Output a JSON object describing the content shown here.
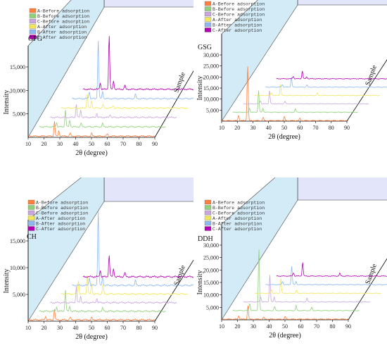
{
  "colors": {
    "wall_left": "#cfe9f6",
    "wall_back": "#e3e6fa",
    "axis": "#000000",
    "series_A_before": "#ff7f3f",
    "series_B_before": "#8fd07a",
    "series_C_before": "#c9a6df",
    "series_A_after": "#f2e65c",
    "series_B_after": "#8fb8f0",
    "series_C_after": "#b200b2"
  },
  "chart_data": [
    {
      "type": "line",
      "panel_label": "GPG",
      "xlabel": "2θ (degree)",
      "ylabel": "Intensity",
      "zlabel": "Sample",
      "xlim": [
        10,
        90
      ],
      "ylim": [
        0,
        15000
      ],
      "x_ticks": [
        "10",
        "20",
        "30",
        "40",
        "50",
        "60",
        "70",
        "80",
        "90"
      ],
      "y_ticks": [
        "5,000",
        "10,000",
        "15,000"
      ],
      "legend_position": "top-left",
      "series": [
        {
          "name": "A-Before adsorption",
          "color": "#ff7f3f",
          "peaks": [
            [
              26.6,
              3200
            ],
            [
              29.4,
              1200
            ],
            [
              36.5,
              700
            ],
            [
              50.1,
              600
            ],
            [
              60,
              500
            ]
          ]
        },
        {
          "name": "B-Before adsorption",
          "color": "#8fd07a",
          "peaks": [
            [
              26.6,
              3600
            ],
            [
              21,
              900
            ],
            [
              29.4,
              1400
            ],
            [
              36.5,
              800
            ],
            [
              50.1,
              700
            ]
          ]
        },
        {
          "name": "C-Before adsorption",
          "color": "#c9a6df",
          "peaks": [
            [
              26.6,
              2800
            ],
            [
              29.4,
              1600
            ],
            [
              39.5,
              900
            ],
            [
              48,
              700
            ]
          ]
        },
        {
          "name": "A-After adsorption",
          "color": "#f2e65c",
          "peaks": [
            [
              26.6,
              3000
            ],
            [
              29.4,
              1500
            ],
            [
              36.5,
              800
            ],
            [
              43,
              600
            ]
          ]
        },
        {
          "name": "B-After adsorption",
          "color": "#8fb8f0",
          "peaks": [
            [
              26.6,
              12500
            ],
            [
              21,
              1500
            ],
            [
              29.4,
              1600
            ],
            [
              50.1,
              900
            ]
          ]
        },
        {
          "name": "C-After adsorption",
          "color": "#b200b2",
          "peaks": [
            [
              26.6,
              11500
            ],
            [
              21,
              1400
            ],
            [
              29.4,
              1800
            ],
            [
              36.5,
              900
            ]
          ]
        }
      ]
    },
    {
      "type": "line",
      "panel_label": "GSG",
      "xlabel": "2θ (degree)",
      "ylabel": "Intensity",
      "zlabel": "Sample",
      "xlim": [
        10,
        90
      ],
      "ylim": [
        0,
        30000
      ],
      "x_ticks": [
        "10",
        "20",
        "30",
        "40",
        "50",
        "60",
        "70",
        "80",
        "90"
      ],
      "y_ticks": [
        "5,000",
        "10,000",
        "15,000",
        "20,000",
        "25,000",
        "30,000"
      ],
      "legend_position": "top-left",
      "series": [
        {
          "name": "A-Before adsorption",
          "color": "#ff7f3f",
          "peaks": [
            [
              26.6,
              25000
            ],
            [
              20.8,
              2500
            ],
            [
              36.5,
              1500
            ],
            [
              50.1,
              1800
            ],
            [
              60,
              1200
            ]
          ]
        },
        {
          "name": "B-Before adsorption",
          "color": "#8fd07a",
          "peaks": [
            [
              26.6,
              10000
            ],
            [
              20.8,
              2000
            ],
            [
              29.4,
              1800
            ],
            [
              50.1,
              1500
            ]
          ]
        },
        {
          "name": "C-Before adsorption",
          "color": "#c9a6df",
          "peaks": [
            [
              26.6,
              6000
            ],
            [
              20.8,
              1500
            ],
            [
              36.5,
              1200
            ]
          ]
        },
        {
          "name": "A-After adsorption",
          "color": "#f2e65c",
          "peaks": [
            [
              26.6,
              5000
            ],
            [
              20.8,
              1400
            ],
            [
              50.1,
              1100
            ]
          ]
        },
        {
          "name": "B-After adsorption",
          "color": "#8fb8f0",
          "peaks": [
            [
              26.6,
              4500
            ],
            [
              20.8,
              1300
            ],
            [
              36.5,
              1000
            ]
          ]
        },
        {
          "name": "C-After adsorption",
          "color": "#b200b2",
          "peaks": [
            [
              26.6,
              3500
            ],
            [
              20.8,
              1200
            ],
            [
              29.4,
              900
            ]
          ]
        }
      ]
    },
    {
      "type": "line",
      "panel_label": "CH",
      "xlabel": "2θ (degree)",
      "ylabel": "Intensity",
      "zlabel": "Sample",
      "xlim": [
        10,
        90
      ],
      "ylim": [
        0,
        15000
      ],
      "x_ticks": [
        "10",
        "20",
        "30",
        "40",
        "50",
        "60",
        "70",
        "80",
        "90"
      ],
      "y_ticks": [
        "5,000",
        "10,000",
        "15,000"
      ],
      "legend_position": "top-left",
      "series": [
        {
          "name": "A-Before adsorption",
          "color": "#ff7f3f",
          "peaks": [
            [
              26.6,
              2000
            ],
            [
              21,
              700
            ],
            [
              36.5,
              500
            ],
            [
              50.1,
              400
            ]
          ]
        },
        {
          "name": "B-Before adsorption",
          "color": "#8fd07a",
          "peaks": [
            [
              26.6,
              4000
            ],
            [
              21,
              800
            ],
            [
              29.4,
              900
            ],
            [
              50.1,
              600
            ]
          ]
        },
        {
          "name": "C-Before adsorption",
          "color": "#c9a6df",
          "peaks": [
            [
              26.6,
              3000
            ],
            [
              29.4,
              1200
            ],
            [
              39.5,
              800
            ]
          ]
        },
        {
          "name": "A-After adsorption",
          "color": "#f2e65c",
          "peaks": [
            [
              26.6,
              3500
            ],
            [
              21,
              2500
            ],
            [
              29.4,
              2000
            ],
            [
              36.5,
              1800
            ]
          ]
        },
        {
          "name": "B-After adsorption",
          "color": "#8fb8f0",
          "peaks": [
            [
              26.6,
              14000
            ],
            [
              21,
              1500
            ],
            [
              29.4,
              1600
            ],
            [
              50.1,
              900
            ]
          ]
        },
        {
          "name": "C-After adsorption",
          "color": "#b200b2",
          "peaks": [
            [
              26.6,
              4000
            ],
            [
              21,
              1200
            ],
            [
              29.4,
              1500
            ],
            [
              36.5,
              800
            ]
          ]
        }
      ]
    },
    {
      "type": "line",
      "panel_label": "DDH",
      "xlabel": "2θ (degree)",
      "ylabel": "Intensity",
      "zlabel": "Sample",
      "xlim": [
        10,
        90
      ],
      "ylim": [
        0,
        30000
      ],
      "x_ticks": [
        "10",
        "20",
        "30",
        "40",
        "50",
        "60",
        "70",
        "80",
        "90"
      ],
      "y_ticks": [
        "5,000",
        "10,000",
        "15,000",
        "20,000",
        "25,000",
        "30,000"
      ],
      "legend_position": "top-left",
      "series": [
        {
          "name": "A-Before adsorption",
          "color": "#ff7f3f",
          "peaks": [
            [
              26.6,
              5500
            ],
            [
              20.8,
              1500
            ],
            [
              36.5,
              900
            ],
            [
              50.1,
              1000
            ]
          ]
        },
        {
          "name": "B-Before adsorption",
          "color": "#8fd07a",
          "peaks": [
            [
              26.6,
              25000
            ],
            [
              20.8,
              3000
            ],
            [
              36.5,
              1600
            ],
            [
              50.1,
              2000
            ],
            [
              60,
              1300
            ]
          ]
        },
        {
          "name": "C-Before adsorption",
          "color": "#c9a6df",
          "peaks": [
            [
              26.6,
              11000
            ],
            [
              20.8,
              2200
            ],
            [
              29.4,
              2000
            ],
            [
              50.1,
              1500
            ]
          ]
        },
        {
          "name": "A-After adsorption",
          "color": "#f2e65c",
          "peaks": [
            [
              26.6,
              6000
            ],
            [
              20.8,
              1600
            ],
            [
              36.5,
              1200
            ]
          ]
        },
        {
          "name": "B-After adsorption",
          "color": "#8fb8f0",
          "peaks": [
            [
              26.6,
              7500
            ],
            [
              20.8,
              1500
            ],
            [
              29.4,
              1300
            ]
          ]
        },
        {
          "name": "C-After adsorption",
          "color": "#b200b2",
          "peaks": [
            [
              26.6,
              5500
            ],
            [
              20.8,
              1400
            ],
            [
              50.1,
              1100
            ]
          ]
        }
      ]
    }
  ]
}
